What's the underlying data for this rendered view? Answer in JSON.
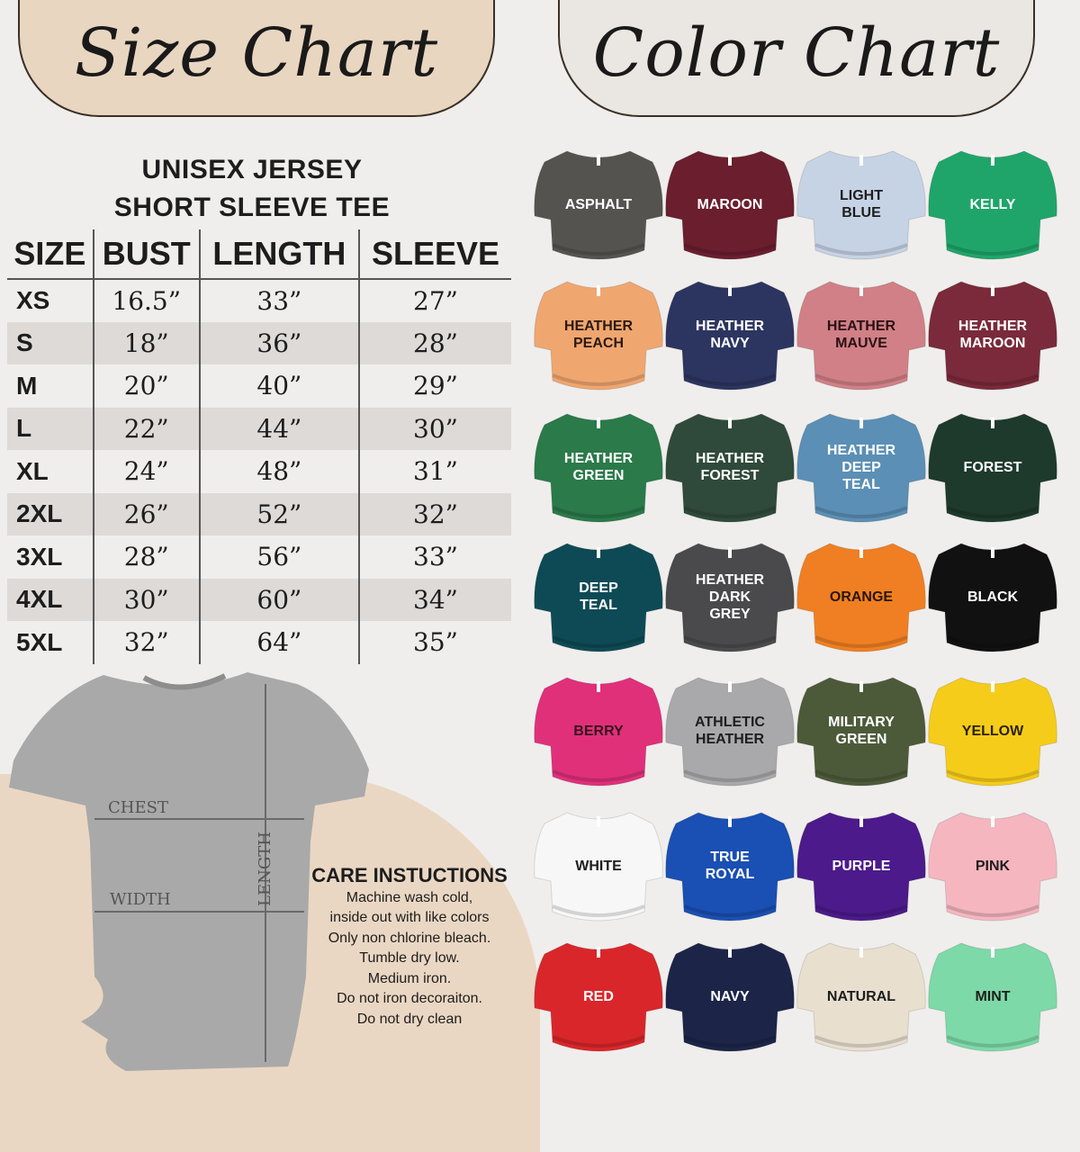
{
  "size_chart": {
    "title": "Size Chart",
    "subtitle_1": "UNISEX JERSEY",
    "subtitle_2": "SHORT SLEEVE TEE",
    "headers": [
      "SIZE",
      "BUST",
      "LENGTH",
      "SLEEVE"
    ],
    "rows": [
      [
        "XS",
        "16.5”",
        "33”",
        "27”"
      ],
      [
        "S",
        "18”",
        "36”",
        "28”"
      ],
      [
        "M",
        "20”",
        "40”",
        "29”"
      ],
      [
        "L",
        "22”",
        "44”",
        "30”"
      ],
      [
        "XL",
        "24”",
        "48”",
        "31”"
      ],
      [
        "2XL",
        "26”",
        "52”",
        "32”"
      ],
      [
        "3XL",
        "28”",
        "56”",
        "33”"
      ],
      [
        "4XL",
        "30”",
        "60”",
        "34”"
      ],
      [
        "5XL",
        "32”",
        "64”",
        "35”"
      ]
    ],
    "diagram": {
      "chest": "CHEST",
      "width": "WIDTH",
      "length": "LENGTH"
    }
  },
  "care": {
    "title": "CARE INSTUCTIONS",
    "lines": [
      "Machine wash cold,",
      "inside out with like colors",
      "Only non chlorine bleach.",
      "Tumble dry low.",
      "Medium iron.",
      "Do not iron decoraiton.",
      "Do not dry clean"
    ]
  },
  "color_chart": {
    "title": "Color Chart",
    "colors": [
      {
        "name": "ASPHALT",
        "hex": "#55534f",
        "text": "#ffffff"
      },
      {
        "name": "MAROON",
        "hex": "#6b1e2e",
        "text": "#ffffff"
      },
      {
        "name": "LIGHT\nBLUE",
        "hex": "#c6d3e5",
        "text": "#1d1d1d"
      },
      {
        "name": "KELLY",
        "hex": "#1fa56a",
        "text": "#ffffff"
      },
      {
        "name": "HEATHER\nPEACH",
        "hex": "#f0a66f",
        "text": "#2a1a10"
      },
      {
        "name": "HEATHER\nNAVY",
        "hex": "#2c3560",
        "text": "#ffffff"
      },
      {
        "name": "HEATHER\nMAUVE",
        "hex": "#d08086",
        "text": "#2a1014"
      },
      {
        "name": "HEATHER\nMAROON",
        "hex": "#7a2a3a",
        "text": "#ffffff"
      },
      {
        "name": "HEATHER\nGREEN",
        "hex": "#2a7a4a",
        "text": "#ffffff"
      },
      {
        "name": "HEATHER\nFOREST",
        "hex": "#2f4a3a",
        "text": "#ffffff"
      },
      {
        "name": "HEATHER\nDEEP\nTEAL",
        "hex": "#5b8fb5",
        "text": "#ffffff"
      },
      {
        "name": "FOREST",
        "hex": "#1e3a2c",
        "text": "#ffffff"
      },
      {
        "name": "DEEP\nTEAL",
        "hex": "#0e4a55",
        "text": "#ffffff"
      },
      {
        "name": "HEATHER\nDARK\nGREY",
        "hex": "#4a4a4c",
        "text": "#ffffff"
      },
      {
        "name": "ORANGE",
        "hex": "#ef7f22",
        "text": "#2a1508"
      },
      {
        "name": "BLACK",
        "hex": "#111111",
        "text": "#ffffff"
      },
      {
        "name": "BERRY",
        "hex": "#e0307a",
        "text": "#3a1020"
      },
      {
        "name": "ATHLETIC\nHEATHER",
        "hex": "#a9a9ab",
        "text": "#1d1d1d"
      },
      {
        "name": "MILITARY\nGREEN",
        "hex": "#4d5a3a",
        "text": "#ffffff"
      },
      {
        "name": "YELLOW",
        "hex": "#f5cc1a",
        "text": "#2a2205"
      },
      {
        "name": "WHITE",
        "hex": "#f7f7f7",
        "text": "#1d1d1d"
      },
      {
        "name": "TRUE\nROYAL",
        "hex": "#1a4fb3",
        "text": "#ffffff"
      },
      {
        "name": "PURPLE",
        "hex": "#4c1a8a",
        "text": "#ffffff"
      },
      {
        "name": "PINK",
        "hex": "#f5b6c0",
        "text": "#1d1d1d"
      },
      {
        "name": "RED",
        "hex": "#d9262a",
        "text": "#ffffff"
      },
      {
        "name": "NAVY",
        "hex": "#1c2548",
        "text": "#ffffff"
      },
      {
        "name": "NATURAL",
        "hex": "#e8dfcf",
        "text": "#1d1d1d"
      },
      {
        "name": "MINT",
        "hex": "#7dd9a8",
        "text": "#1d1d1d"
      }
    ]
  }
}
